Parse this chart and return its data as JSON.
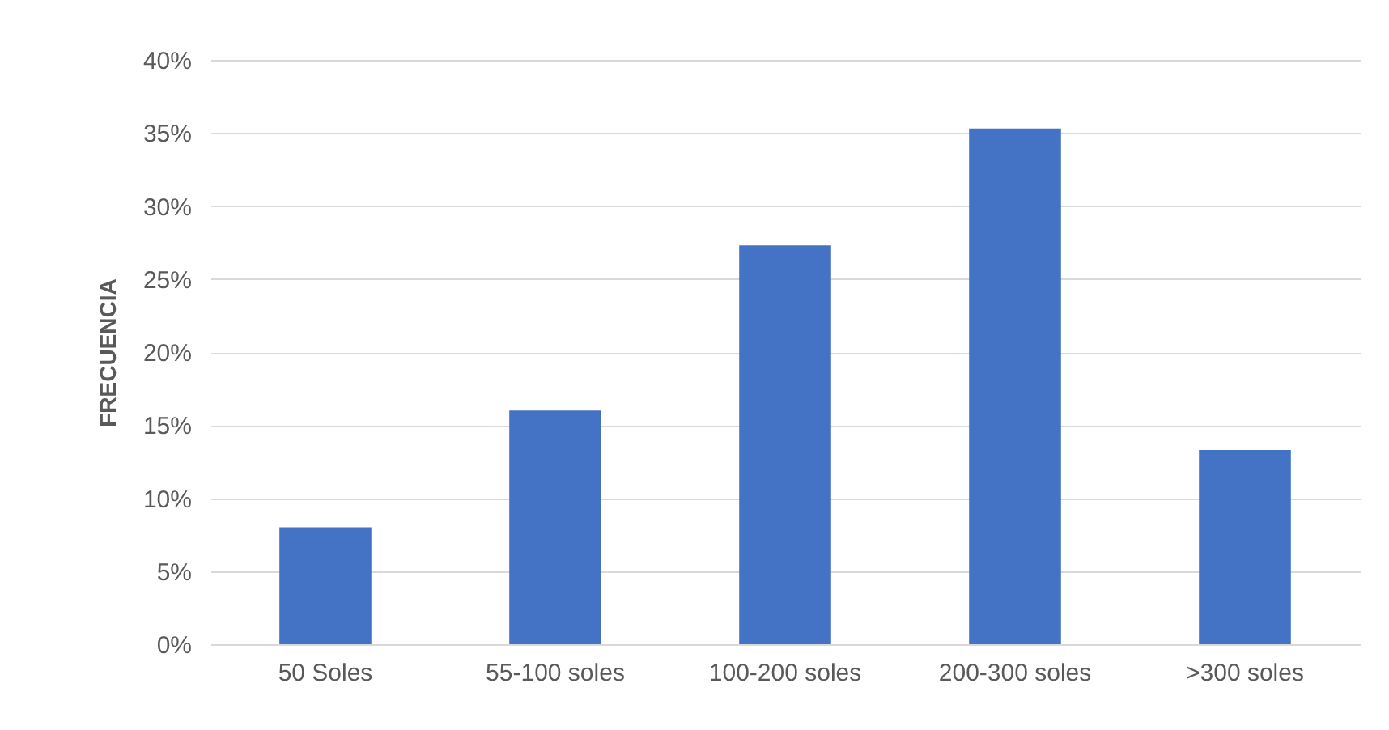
{
  "chart_data": {
    "type": "bar",
    "ylabel": "FRECUENCIA",
    "categories": [
      "50 Soles",
      "55-100 soles",
      "100-200 soles",
      "200-300 soles",
      ">300 soles"
    ],
    "values": [
      8,
      16,
      27.3,
      35.3,
      13.3
    ],
    "color": "#4472c4",
    "ylim": [
      0,
      40
    ],
    "yticks": [
      {
        "value": 0,
        "label": "0%"
      },
      {
        "value": 5,
        "label": "5%"
      },
      {
        "value": 10,
        "label": "10%"
      },
      {
        "value": 15,
        "label": "15%"
      },
      {
        "value": 20,
        "label": "20%"
      },
      {
        "value": 25,
        "label": "25%"
      },
      {
        "value": 30,
        "label": "30%"
      },
      {
        "value": 35,
        "label": "35%"
      },
      {
        "value": 40,
        "label": "40%"
      }
    ],
    "grid": "y"
  }
}
